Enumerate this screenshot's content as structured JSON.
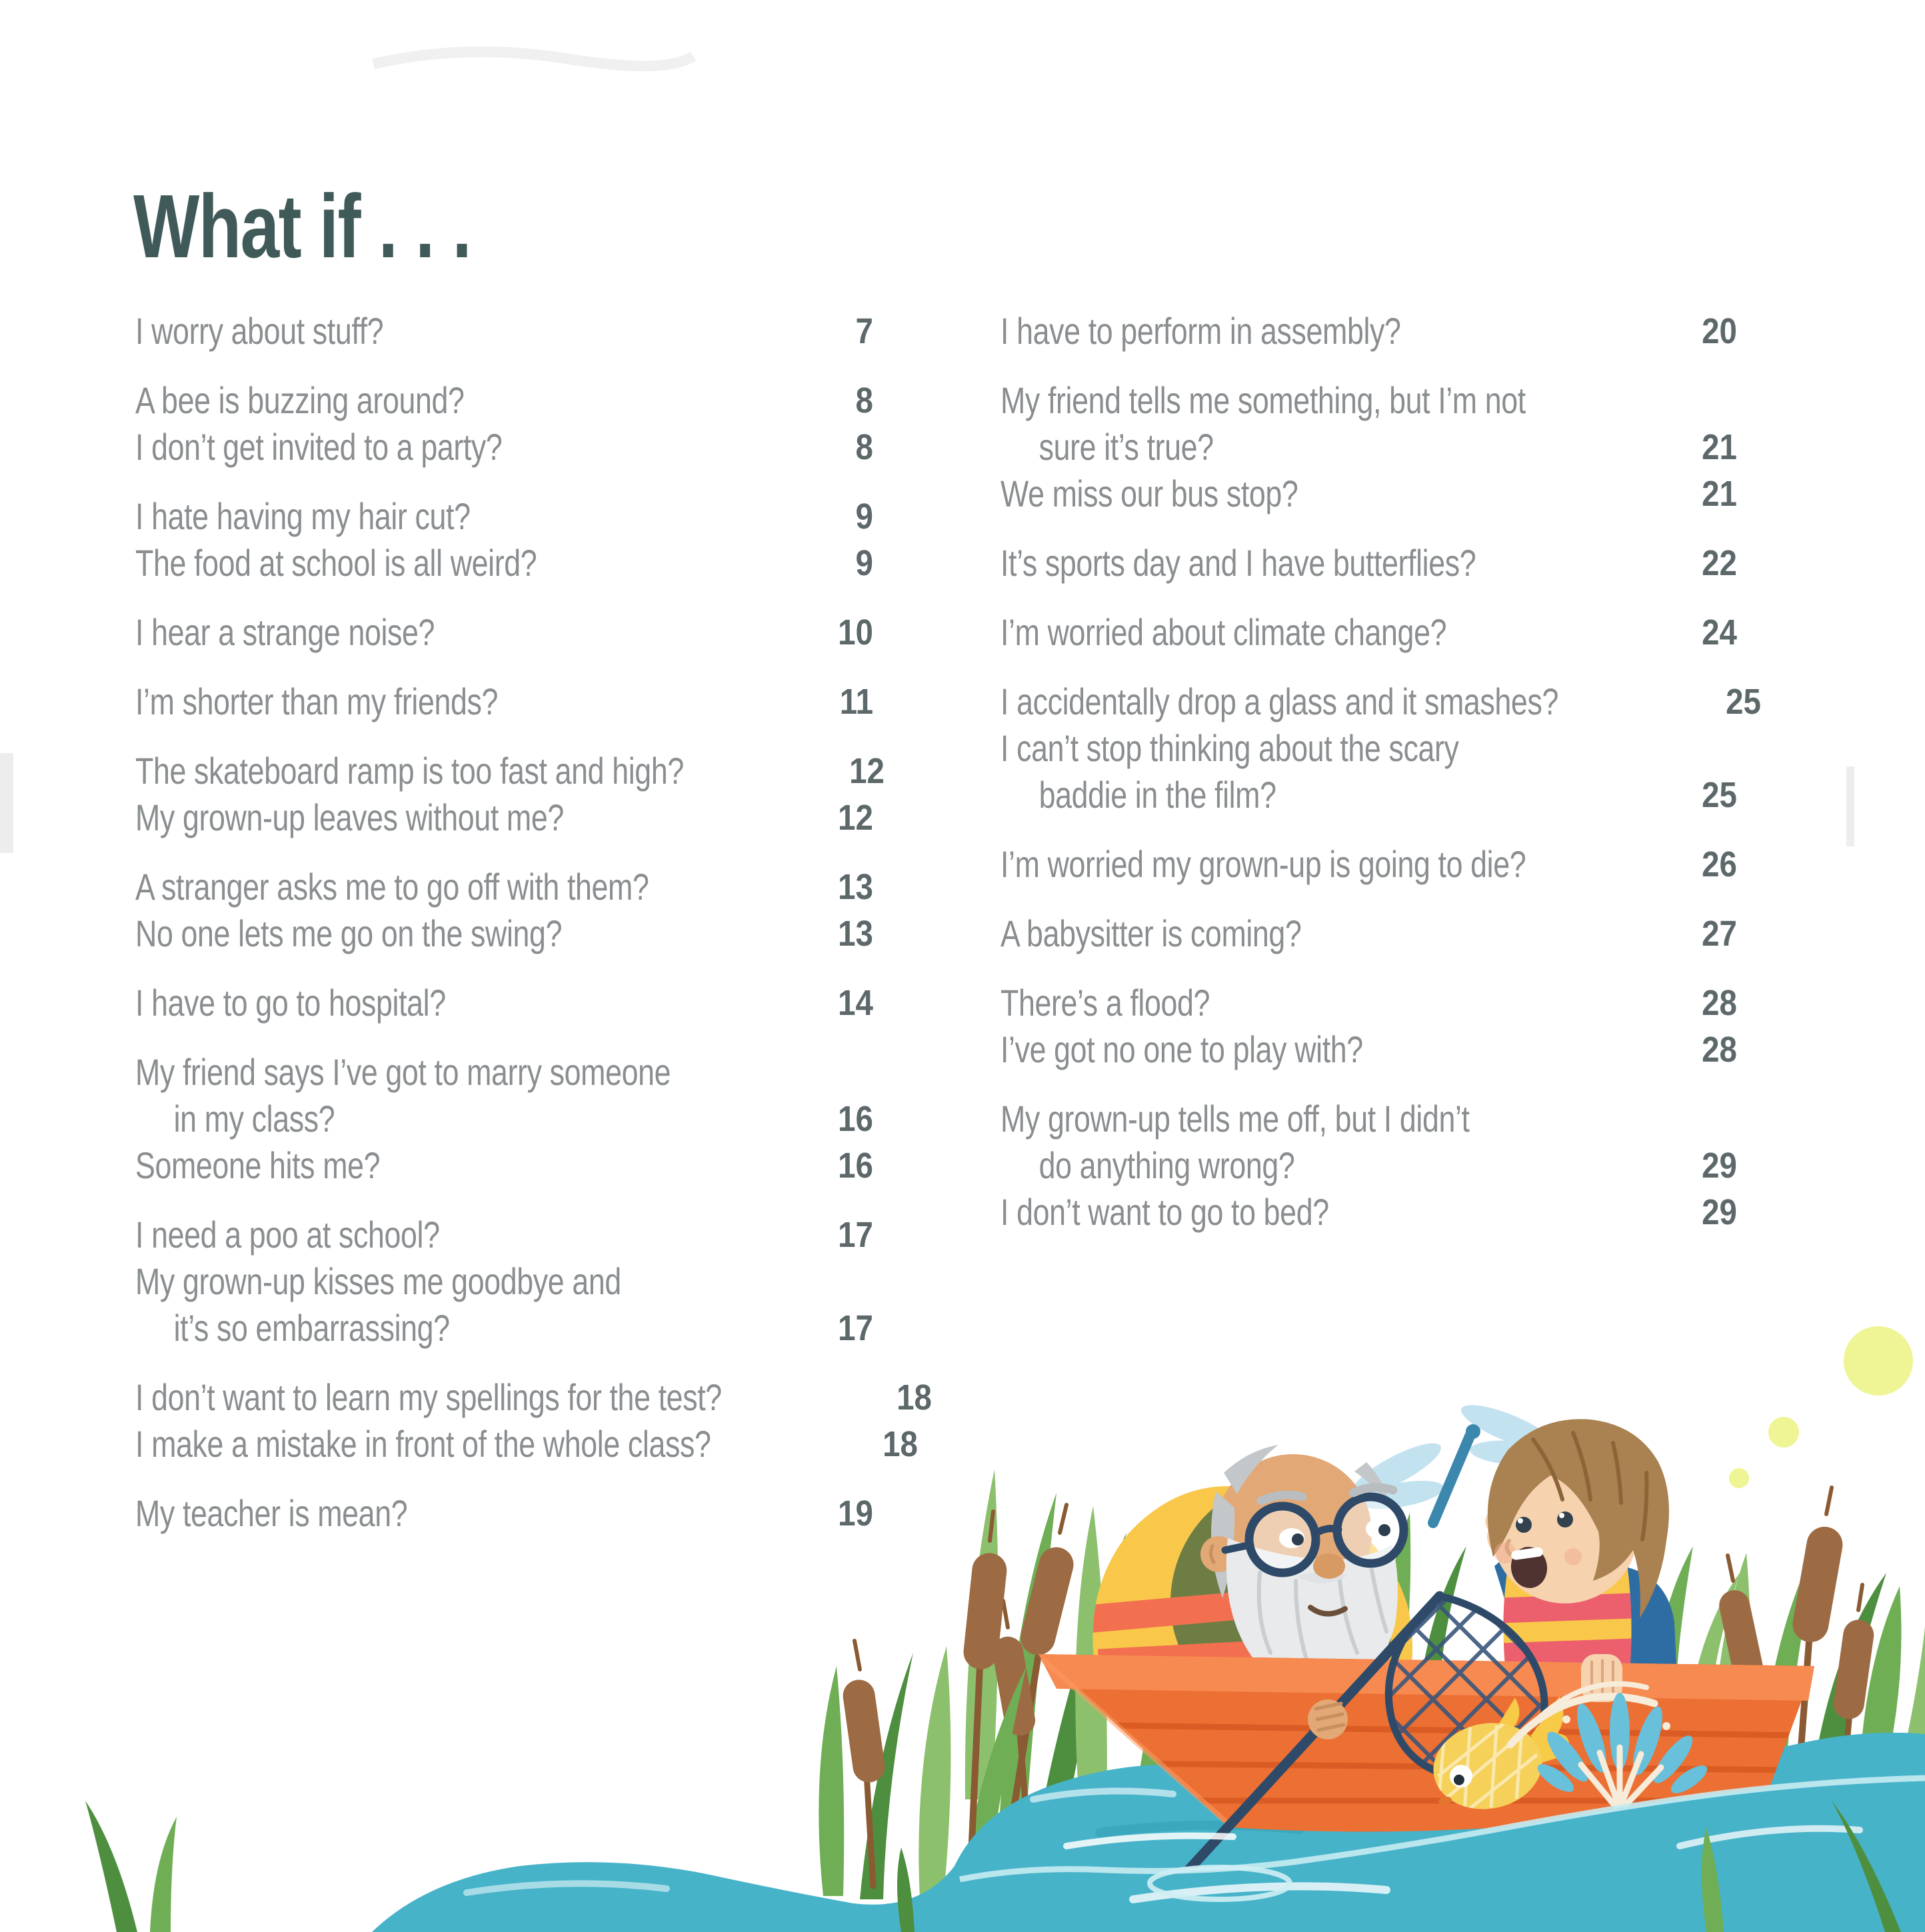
{
  "page": {
    "title": "What if . . .",
    "colors": {
      "background": "#ffffff",
      "title": "#3f5a58",
      "entry": "#8a8e90",
      "number": "#5d686b"
    }
  },
  "toc": {
    "columns": [
      {
        "groups": [
          {
            "lines": [
              {
                "text": "I worry about stuff?",
                "page": "7",
                "indent": false
              }
            ]
          },
          {
            "lines": [
              {
                "text": "A bee is buzzing around?",
                "page": "8",
                "indent": false
              },
              {
                "text": "I don’t get invited to a party?",
                "page": "8",
                "indent": false
              }
            ]
          },
          {
            "lines": [
              {
                "text": "I hate having my hair cut?",
                "page": "9",
                "indent": false
              },
              {
                "text": "The food at school is all weird?",
                "page": "9",
                "indent": false
              }
            ]
          },
          {
            "lines": [
              {
                "text": "I hear a strange noise?",
                "page": "10",
                "indent": false
              }
            ]
          },
          {
            "lines": [
              {
                "text": "I’m shorter than my friends?",
                "page": "11",
                "indent": false
              }
            ]
          },
          {
            "lines": [
              {
                "text": "The skateboard ramp is too fast and high?",
                "page": "12",
                "indent": false
              },
              {
                "text": "My grown-up leaves without me?",
                "page": "12",
                "indent": false
              }
            ]
          },
          {
            "lines": [
              {
                "text": "A stranger asks me to go off with them?",
                "page": "13",
                "indent": false
              },
              {
                "text": "No one lets me go on the swing?",
                "page": "13",
                "indent": false
              }
            ]
          },
          {
            "lines": [
              {
                "text": "I have to go to hospital?",
                "page": "14",
                "indent": false
              }
            ]
          },
          {
            "lines": [
              {
                "text": "My friend says I’ve got to marry someone",
                "page": "",
                "indent": false
              },
              {
                "text": "in my class?",
                "page": "16",
                "indent": true
              },
              {
                "text": "Someone hits me?",
                "page": "16",
                "indent": false
              }
            ]
          },
          {
            "lines": [
              {
                "text": "I need a poo at school?",
                "page": "17",
                "indent": false
              },
              {
                "text": "My grown-up kisses me goodbye and",
                "page": "",
                "indent": false
              },
              {
                "text": "it’s so embarrassing?",
                "page": "17",
                "indent": true
              }
            ]
          },
          {
            "lines": [
              {
                "text": "I don’t want to learn my spellings for the test?",
                "page": "18",
                "indent": false
              },
              {
                "text": "I make a mistake in front of the whole class?",
                "page": "18",
                "indent": false
              }
            ]
          },
          {
            "lines": [
              {
                "text": "My teacher is mean?",
                "page": "19",
                "indent": false
              }
            ]
          }
        ]
      },
      {
        "groups": [
          {
            "lines": [
              {
                "text": "I have to perform in assembly?",
                "page": "20",
                "indent": false
              }
            ]
          },
          {
            "lines": [
              {
                "text": "My friend tells me something, but I’m not",
                "page": "",
                "indent": false
              },
              {
                "text": "sure it’s true?",
                "page": "21",
                "indent": true
              },
              {
                "text": "We miss our bus stop?",
                "page": "21",
                "indent": false
              }
            ]
          },
          {
            "lines": [
              {
                "text": "It’s sports day and I have butterflies?",
                "page": "22",
                "indent": false
              }
            ]
          },
          {
            "lines": [
              {
                "text": "I’m worried about climate change?",
                "page": "24",
                "indent": false
              }
            ]
          },
          {
            "lines": [
              {
                "text": "I accidentally drop a glass and it smashes?",
                "page": "25",
                "indent": false
              },
              {
                "text": "I can’t stop thinking about the scary",
                "page": "",
                "indent": false
              },
              {
                "text": "baddie in the film?",
                "page": "25",
                "indent": true
              }
            ]
          },
          {
            "lines": [
              {
                "text": "I’m worried my grown-up is going to die?",
                "page": "26",
                "indent": false
              }
            ]
          },
          {
            "lines": [
              {
                "text": "A babysitter is coming?",
                "page": "27",
                "indent": false
              }
            ]
          },
          {
            "lines": [
              {
                "text": "There’s a flood?",
                "page": "28",
                "indent": false
              },
              {
                "text": "I’ve got no one to play with?",
                "page": "28",
                "indent": false
              }
            ]
          },
          {
            "lines": [
              {
                "text": "My grown-up tells me off, but I didn’t",
                "page": "",
                "indent": false
              },
              {
                "text": "do anything wrong?",
                "page": "29",
                "indent": true
              },
              {
                "text": "I don’t want to go to bed?",
                "page": "29",
                "indent": false
              }
            ]
          }
        ]
      }
    ]
  },
  "illustration": {
    "alt": "A grandfather with glasses and a white beard and a brown-haired child, both wearing yellow life vests, sit in an orange rowing boat among reeds and cattails; the grandfather holds a fishing net while a yellow fish leaps with a splash and a dragonfly hovers above.",
    "elements": [
      "pond-water",
      "rowing-boat",
      "grandfather",
      "child",
      "fishing-net",
      "goldfish",
      "water-splash",
      "dragonfly",
      "reeds",
      "cattails",
      "bokeh-dots"
    ],
    "colors": {
      "water": "#46b3c9",
      "water_light": "#bfe6ee",
      "water_deep": "#2f9db4",
      "boat": "#ec6f33",
      "boat_rim": "#f68a50",
      "boat_line": "#d4561f",
      "grass": "#6fae55",
      "grass_light": "#8cc06d",
      "grass_dark": "#4e8f3f",
      "cattail": "#9c6b44",
      "vest_yellow": "#f9c84a",
      "stripe_orange": "#f2704f",
      "stripe_pink": "#ec5f6d",
      "jacket_olive": "#6d7d44",
      "skin_grandpa": "#e2a876",
      "skin_child": "#f6d2ae",
      "hair_gray": "#c3c7ca",
      "beard": "#e8eaec",
      "hair_brown": "#aa8150",
      "shirt_blue": "#2e6da4",
      "navy": "#2e4a68",
      "fish_yellow": "#f5d15a",
      "splash_blue": "#68c0da",
      "splash_cream": "#f6ecd9",
      "dragonfly": "#3c87ad",
      "dragonfly_wing": "#c3e2ef",
      "dot_green": "#ecf283"
    }
  }
}
